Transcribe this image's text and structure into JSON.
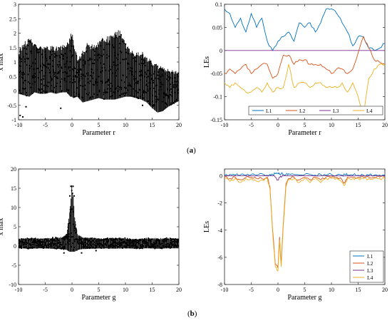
{
  "captions": {
    "a": "a",
    "b": "b"
  },
  "chart_data": [
    {
      "id": "a-left",
      "type": "scatter",
      "xlabel": "Parameter r",
      "ylabel": "x max",
      "xlim": [
        -10,
        20
      ],
      "ylim": [
        -1,
        3
      ],
      "xticks": [
        -10,
        -5,
        0,
        5,
        10,
        15,
        20
      ],
      "yticks": [
        -1,
        -0.5,
        0,
        0.5,
        1,
        1.5,
        2,
        2.5,
        3
      ],
      "tick_labels_y": [
        "-1",
        "-0.5",
        "0",
        "0.5",
        "1",
        "1.5",
        "2",
        "2.5",
        "3"
      ],
      "grid": false,
      "color": "#000000",
      "envelope": {
        "x": [
          -10,
          -9,
          -8,
          -7,
          -6,
          -5,
          -4,
          -3,
          -2,
          -1,
          -0.3,
          0,
          0.3,
          1,
          2,
          3,
          4,
          5,
          6,
          7,
          8,
          9,
          10,
          11,
          12,
          13,
          14,
          15,
          16,
          17,
          18,
          19,
          20
        ],
        "upper": [
          1.3,
          1.6,
          1.75,
          1.6,
          1.5,
          1.45,
          1.5,
          1.45,
          1.5,
          1.55,
          1.8,
          2.0,
          1.6,
          1.1,
          1.3,
          1.6,
          1.5,
          1.65,
          1.75,
          1.8,
          1.9,
          2.0,
          1.6,
          1.35,
          1.25,
          1.3,
          1.1,
          0.95,
          0.85,
          0.75,
          0.7,
          0.65,
          0.6
        ],
        "lower": [
          -0.1,
          -0.15,
          -0.2,
          -0.05,
          -0.1,
          -0.1,
          -0.05,
          -0.1,
          -0.05,
          -0.05,
          -0.2,
          -0.2,
          -0.25,
          -0.2,
          -0.4,
          -0.35,
          -0.3,
          -0.25,
          -0.3,
          -0.3,
          -0.3,
          -0.25,
          -0.2,
          -0.2,
          -0.25,
          -0.3,
          -0.4,
          -0.6,
          -0.75,
          -0.7,
          -0.55,
          -0.45,
          -0.35
        ]
      },
      "outliers": [
        [
          -9.7,
          -0.85
        ],
        [
          -9.2,
          -0.9
        ],
        [
          -8.6,
          -0.55
        ],
        [
          -2.1,
          -0.6
        ],
        [
          13.2,
          -0.5
        ]
      ]
    },
    {
      "id": "a-right",
      "type": "line",
      "xlabel": "Parameter r",
      "ylabel": "LEs",
      "xlim": [
        -10,
        20
      ],
      "ylim": [
        -0.15,
        0.1
      ],
      "xticks": [
        -10,
        -5,
        0,
        5,
        10,
        15,
        20
      ],
      "yticks": [
        -0.15,
        -0.1,
        -0.05,
        0,
        0.05,
        0.1
      ],
      "tick_labels_y": [
        "-0.15",
        "-0.1",
        "-0.05",
        "0",
        "0.05",
        "0.1"
      ],
      "grid": false,
      "legend": {
        "position": "bottom",
        "orientation": "horizontal"
      },
      "x": [
        -10,
        -9,
        -8,
        -7,
        -6,
        -5,
        -4,
        -3,
        -2,
        -1,
        0,
        1,
        2,
        3,
        4,
        5,
        6,
        7,
        8,
        9,
        10,
        11,
        12,
        13,
        14,
        15,
        16,
        17,
        18,
        19,
        20
      ],
      "series": [
        {
          "name": "L1",
          "color": "#0072BD",
          "values": [
            0.09,
            0.08,
            0.05,
            0.07,
            0.04,
            0.08,
            0.05,
            0.07,
            0.02,
            0.0,
            0.02,
            0.03,
            0.04,
            0.02,
            0.06,
            0.05,
            0.06,
            0.04,
            0.06,
            0.09,
            0.09,
            0.08,
            0.06,
            0.04,
            0.01,
            0.03,
            0.03,
            0.005,
            0.0,
            0.005,
            0.015
          ]
        },
        {
          "name": "L2",
          "color": "#D95319",
          "values": [
            -0.05,
            -0.04,
            -0.05,
            -0.04,
            -0.03,
            -0.05,
            -0.04,
            -0.03,
            -0.03,
            -0.06,
            -0.05,
            -0.01,
            -0.01,
            -0.03,
            -0.02,
            -0.02,
            -0.03,
            -0.03,
            -0.03,
            -0.04,
            -0.05,
            -0.04,
            -0.04,
            -0.05,
            -0.04,
            -0.005,
            0.03,
            0.005,
            -0.02,
            -0.025,
            -0.03
          ]
        },
        {
          "name": "L3",
          "color": "#7E2F8E",
          "values": [
            0,
            0,
            0,
            0,
            0,
            0,
            0,
            0,
            0,
            0,
            0,
            0,
            0,
            0,
            0,
            0,
            0,
            0,
            0,
            0,
            0,
            0,
            0,
            0,
            0,
            0,
            0,
            0,
            0,
            0,
            0
          ]
        },
        {
          "name": "L4",
          "color": "#EDB120",
          "values": [
            -0.07,
            -0.08,
            -0.07,
            -0.08,
            -0.09,
            -0.09,
            -0.08,
            -0.09,
            -0.07,
            -0.09,
            -0.08,
            -0.08,
            -0.03,
            -0.08,
            -0.07,
            -0.07,
            -0.08,
            -0.07,
            -0.07,
            -0.08,
            -0.08,
            -0.08,
            -0.07,
            -0.09,
            -0.07,
            -0.1,
            -0.14,
            -0.06,
            -0.04,
            -0.03,
            -0.03
          ]
        }
      ]
    },
    {
      "id": "b-left",
      "type": "scatter",
      "xlabel": "Parameter g",
      "ylabel": "x max",
      "xlim": [
        -10,
        20
      ],
      "ylim": [
        -10,
        20
      ],
      "xticks": [
        -10,
        -5,
        0,
        5,
        10,
        15,
        20
      ],
      "yticks": [
        -10,
        -5,
        0,
        5,
        10,
        15,
        20
      ],
      "tick_labels_y": [
        "-10",
        "-5",
        "0",
        "5",
        "10",
        "15",
        "20"
      ],
      "grid": false,
      "color": "#000000",
      "envelope": {
        "x": [
          -10,
          -8,
          -6,
          -4,
          -2,
          -1,
          -0.5,
          0,
          0.5,
          1,
          2,
          4,
          6,
          8,
          10,
          12,
          14,
          16,
          18,
          20
        ],
        "upper": [
          1.8,
          2.0,
          1.9,
          2.0,
          2.2,
          3.0,
          8.0,
          16.0,
          8.0,
          3.0,
          2.2,
          2.0,
          1.9,
          2.1,
          2.0,
          1.8,
          2.0,
          1.9,
          2.0,
          1.8
        ],
        "lower": [
          -0.6,
          -0.7,
          -0.6,
          -0.7,
          -0.8,
          -1.0,
          -1.5,
          -1.5,
          -1.5,
          -1.0,
          -0.8,
          -0.7,
          -0.6,
          -0.7,
          -0.6,
          -0.7,
          -0.6,
          -0.7,
          -0.6,
          -0.6
        ]
      },
      "outliers": [
        [
          -0.2,
          15.5
        ],
        [
          0.2,
          15.5
        ],
        [
          -0.4,
          13.0
        ],
        [
          0.4,
          13.0
        ],
        [
          -1.5,
          -1.8
        ],
        [
          1.8,
          -1.8
        ],
        [
          4.5,
          -1.2
        ]
      ]
    },
    {
      "id": "b-right",
      "type": "line",
      "xlabel": "Parameter g",
      "ylabel": "LEs",
      "xlim": [
        -10,
        20
      ],
      "ylim": [
        -8,
        0.5
      ],
      "xticks": [
        -10,
        -5,
        0,
        5,
        10,
        15,
        20
      ],
      "yticks": [
        -8,
        -6,
        -4,
        -2,
        0
      ],
      "tick_labels_y": [
        "-8",
        "-6",
        "-4",
        "-2",
        "0"
      ],
      "grid": false,
      "legend": {
        "position": "bottom-right",
        "orientation": "vertical"
      },
      "x": [
        -10,
        -9,
        -8,
        -7,
        -6,
        -5,
        -4,
        -3,
        -2,
        -1.5,
        -1,
        -0.5,
        0,
        0.3,
        0.6,
        1,
        1.5,
        2,
        3,
        4,
        5,
        6,
        7,
        8,
        9,
        10,
        11,
        12,
        12.5,
        13,
        14,
        15,
        16,
        17,
        18,
        19,
        20
      ],
      "series": [
        {
          "name": "L1",
          "color": "#0072BD",
          "values": [
            0.05,
            0.1,
            0.05,
            0.08,
            0.05,
            0.1,
            0.05,
            0.15,
            0.05,
            0.1,
            0.1,
            0.15,
            0.2,
            0.1,
            0.15,
            0.1,
            0.1,
            0.15,
            0.1,
            0.05,
            0.1,
            0.1,
            0.05,
            0.1,
            0.05,
            0.1,
            0.05,
            0.05,
            0.1,
            0.05,
            0.05,
            0.05,
            0.05,
            0.05,
            0.05,
            0.05,
            0.05
          ]
        },
        {
          "name": "L2",
          "color": "#D95319",
          "values": [
            -0.1,
            -0.2,
            -0.1,
            -0.3,
            -0.1,
            -0.1,
            -0.2,
            -0.2,
            -0.1,
            -0.8,
            -4.0,
            -6.5,
            -6.8,
            -4.5,
            -6.5,
            -3.5,
            -0.6,
            -0.2,
            -0.1,
            -0.3,
            -0.1,
            -0.3,
            -0.1,
            -0.3,
            -0.1,
            -0.1,
            -0.1,
            -0.3,
            -0.5,
            -0.1,
            -0.1,
            -0.1,
            -0.1,
            -0.1,
            -0.1,
            -0.1,
            -0.1
          ]
        },
        {
          "name": "L3",
          "color": "#7E2F8E",
          "values": [
            0,
            0,
            0,
            0,
            0,
            0,
            0,
            0,
            0,
            0,
            0,
            -0.1,
            -0.3,
            -0.1,
            -0.1,
            0,
            0,
            0,
            0,
            0,
            0,
            0,
            0,
            0,
            0,
            0,
            0,
            0,
            0,
            0,
            0,
            0,
            0,
            0,
            0,
            0,
            0
          ]
        },
        {
          "name": "L4",
          "color": "#EDB120",
          "values": [
            -0.2,
            -0.4,
            -0.2,
            -0.5,
            -0.2,
            -0.2,
            -0.4,
            -0.3,
            -0.2,
            -1.0,
            -4.2,
            -6.7,
            -7.0,
            -4.7,
            -6.7,
            -3.7,
            -0.8,
            -0.3,
            -0.2,
            -0.5,
            -0.2,
            -0.5,
            -0.2,
            -0.5,
            -0.2,
            -0.2,
            -0.2,
            -0.5,
            -0.7,
            -0.2,
            -0.2,
            -0.2,
            -0.2,
            -0.2,
            -0.2,
            -0.2,
            -0.2
          ]
        }
      ]
    }
  ]
}
